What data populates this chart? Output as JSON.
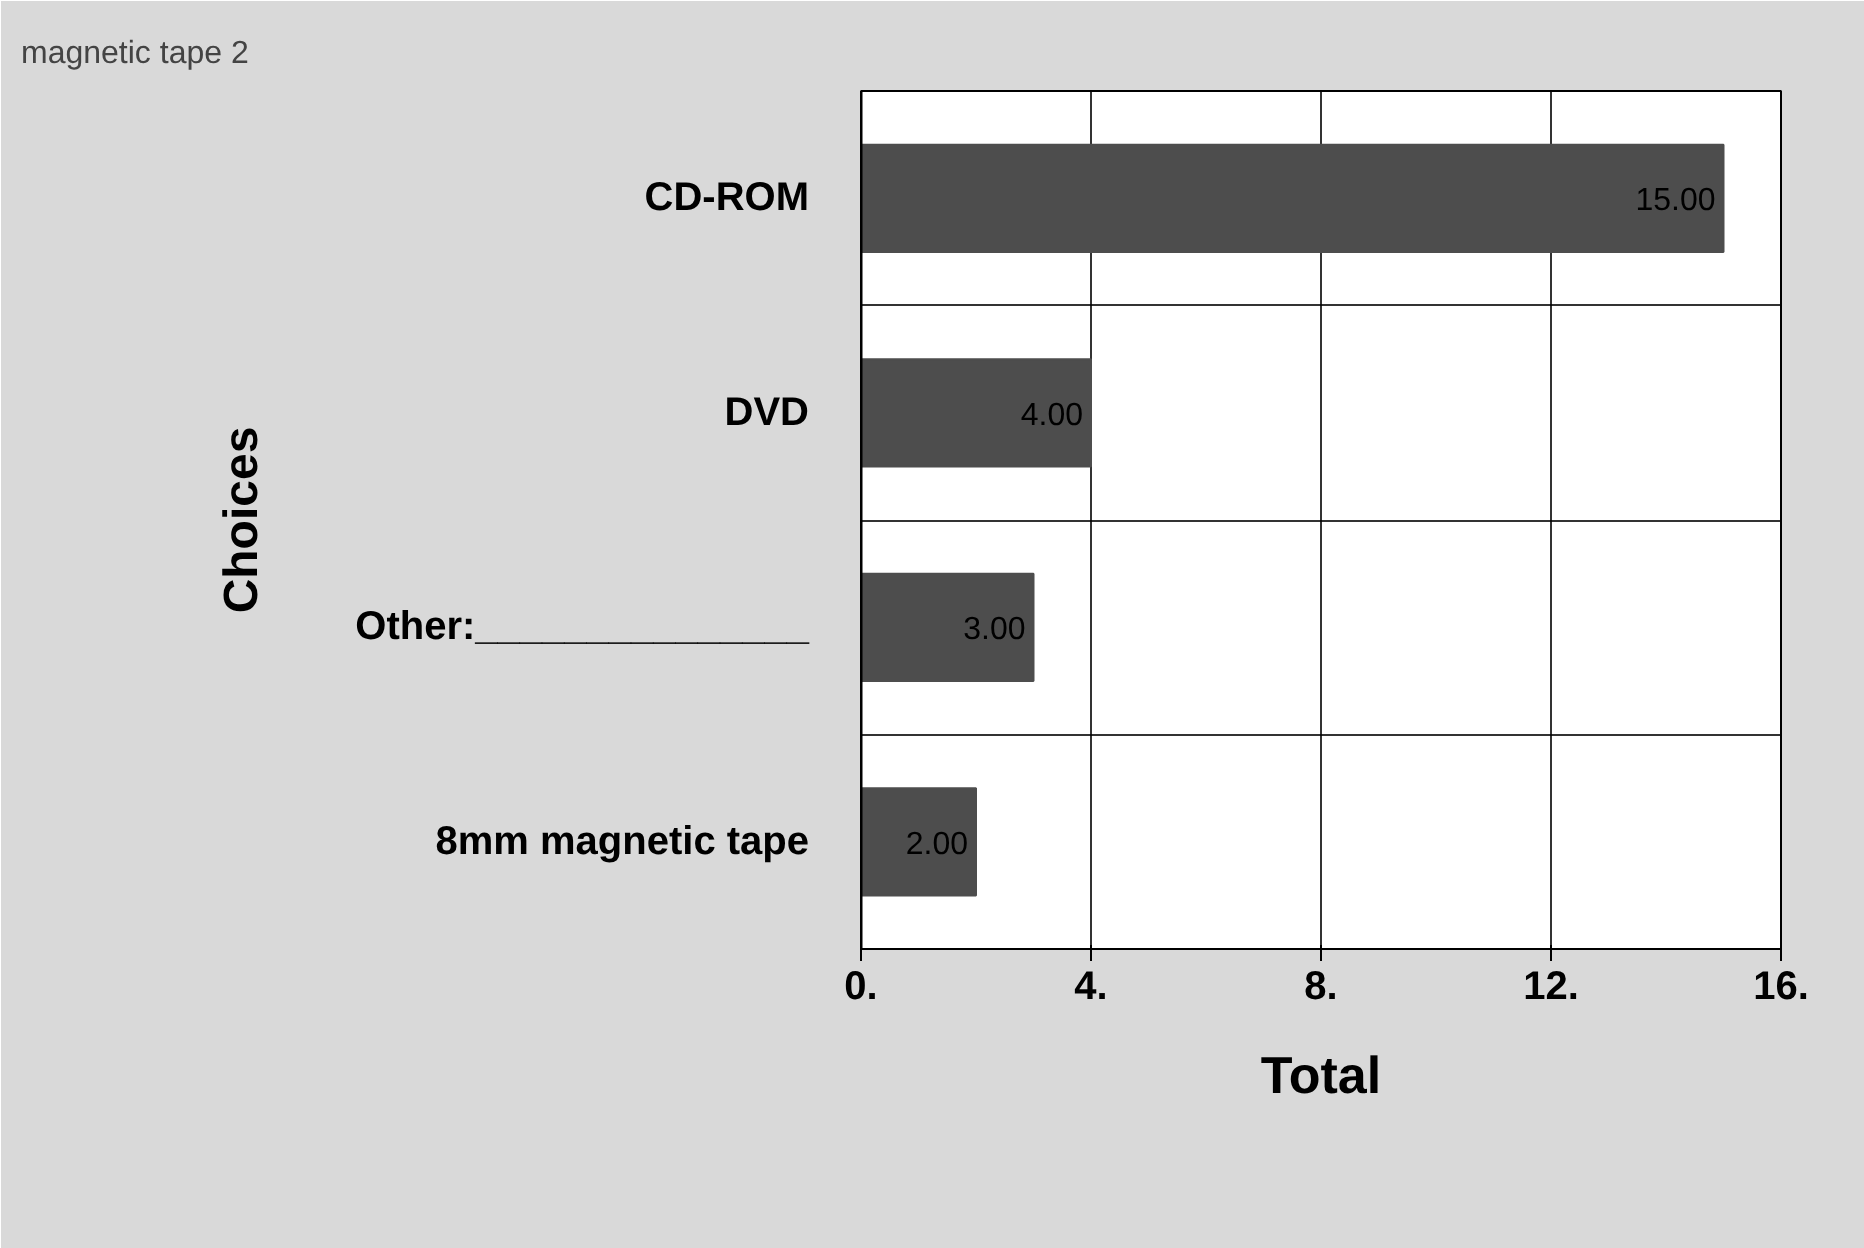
{
  "chart_data": {
    "type": "bar",
    "orientation": "horizontal",
    "categories": [
      "CD-ROM",
      "DVD",
      "Other:_______________",
      "8mm magnetic tape"
    ],
    "values": [
      15,
      4,
      3,
      2
    ],
    "value_labels": [
      "15.00",
      "4.00",
      "3.00",
      "2.00"
    ],
    "color": "#4d4d4d",
    "xlabel": "Total",
    "ylabel": "Choices",
    "xlim": [
      0,
      16
    ],
    "xticks": [
      {
        "value": 0,
        "label": "0."
      },
      {
        "value": 4,
        "label": "4."
      },
      {
        "value": 8,
        "label": "8."
      },
      {
        "value": 12,
        "label": "12."
      },
      {
        "value": 16,
        "label": "16."
      }
    ],
    "grid": true,
    "annotations": [
      "magnetic tape    2"
    ]
  }
}
